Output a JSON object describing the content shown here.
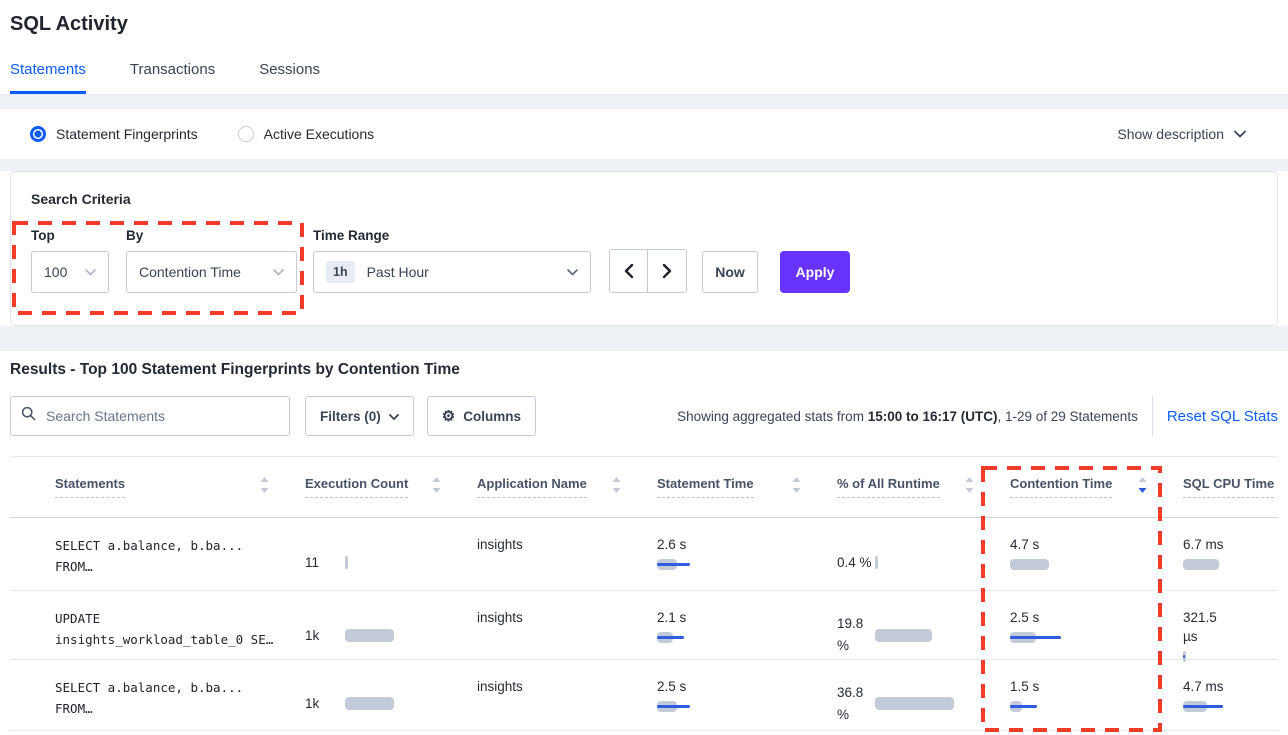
{
  "page": {
    "title": "SQL Activity"
  },
  "tabs": [
    {
      "label": "Statements",
      "active": true
    },
    {
      "label": "Transactions",
      "active": false
    },
    {
      "label": "Sessions",
      "active": false
    }
  ],
  "view_toggle": {
    "options": [
      {
        "label": "Statement Fingerprints",
        "selected": true
      },
      {
        "label": "Active Executions",
        "selected": false
      }
    ],
    "show_description_label": "Show description"
  },
  "search_criteria": {
    "title": "Search Criteria",
    "top": {
      "label": "Top",
      "value": "100"
    },
    "by": {
      "label": "By",
      "value": "Contention Time"
    },
    "time_range": {
      "label": "Time Range",
      "badge": "1h",
      "value": "Past Hour"
    },
    "now_label": "Now",
    "apply_label": "Apply"
  },
  "results": {
    "heading": "Results - Top 100 Statement Fingerprints by Contention Time",
    "search_placeholder": "Search Statements",
    "filters_label": "Filters (0)",
    "columns_label": "Columns",
    "stats_prefix": "Showing aggregated stats from ",
    "stats_range": "15:00 to 16:17 (UTC)",
    "stats_suffix": ", 1-29 of 29 Statements",
    "reset_label": "Reset SQL Stats"
  },
  "icons": {
    "gear": "⚙"
  },
  "colors": {
    "accent_blue": "#0b5cff",
    "apply_purple": "#6933ff",
    "annotation_red": "#f23b28",
    "bar_gray": "#c3cad8",
    "bar_blue": "#2f5ce0"
  },
  "table": {
    "headers": [
      {
        "label": "Statements",
        "sort": "none"
      },
      {
        "label": "Execution Count",
        "sort": "none"
      },
      {
        "label": "Application Name",
        "sort": "none"
      },
      {
        "label": "Statement Time",
        "sort": "none"
      },
      {
        "label": "% of All Runtime",
        "sort": "none"
      },
      {
        "label": "Contention Time",
        "sort": "desc"
      },
      {
        "label": "SQL CPU Time",
        "sort": "hidden"
      }
    ],
    "rows": [
      {
        "sql_line1": "SELECT a.balance, b.ba...",
        "sql_line2": "FROM…",
        "exec": "11",
        "app": "insights",
        "stmt": "2.6 s",
        "pct1": "0.4 %",
        "pct2": "",
        "cont": "4.7 s",
        "cpu1": "6.7 ms",
        "cpu2": "",
        "bars": {
          "exec": 3,
          "stmt": 20,
          "stmt_line": 33,
          "pct": 3,
          "cont": 39,
          "cont_line": 0,
          "cpu": 36,
          "cpu_line": 0
        }
      },
      {
        "sql_line1": "UPDATE",
        "sql_line2": "insights_workload_table_0 SE…",
        "exec": "1k",
        "app": "insights",
        "stmt": "2.1 s",
        "pct1": "19.8",
        "pct2": "%",
        "cont": "2.5 s",
        "cpu1": "321.5",
        "cpu2": "µs",
        "bars": {
          "exec": 49,
          "stmt": 16,
          "stmt_line": 27,
          "pct": 57,
          "cont": 26,
          "cont_line": 51,
          "cpu": 3,
          "cpu_line": 2
        }
      },
      {
        "sql_line1": "SELECT a.balance, b.ba...",
        "sql_line2": "FROM…",
        "exec": "1k",
        "app": "insights",
        "stmt": "2.5 s",
        "pct1": "36.8",
        "pct2": "%",
        "cont": "1.5 s",
        "cpu1": "4.7 ms",
        "cpu2": "",
        "bars": {
          "exec": 49,
          "stmt": 20,
          "stmt_line": 33,
          "pct": 79,
          "cont": 12,
          "cont_line": 27,
          "cpu": 24,
          "cpu_line": 40
        }
      }
    ]
  }
}
